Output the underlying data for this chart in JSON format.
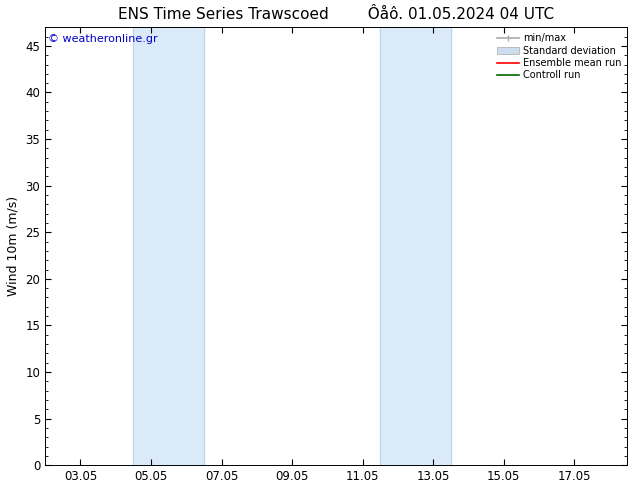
{
  "title_left": "ENS Time Series Trawscoed",
  "title_right": "Ôåô. 01.05.2024 04 UTC",
  "ylabel": "Wind 10m (m/s)",
  "watermark": "© weatheronline.gr",
  "watermark_color": "#0000cc",
  "ylim": [
    0,
    47
  ],
  "yticks": [
    0,
    5,
    10,
    15,
    20,
    25,
    30,
    35,
    40,
    45
  ],
  "xtick_labels": [
    "03.05",
    "05.05",
    "07.05",
    "09.05",
    "11.05",
    "13.05",
    "15.05",
    "17.05"
  ],
  "xtick_positions": [
    2,
    4,
    6,
    8,
    10,
    12,
    14,
    16
  ],
  "xmin": 1,
  "xmax": 17.5,
  "bg_color": "#ffffff",
  "plot_bg_color": "#ffffff",
  "shaded_bands": [
    {
      "xmin": 3.5,
      "xmax": 5.5,
      "color": "#daeaf8"
    },
    {
      "xmin": 10.5,
      "xmax": 12.5,
      "color": "#daeaf8"
    }
  ],
  "legend_items": [
    {
      "label": "min/max",
      "color": "#aaaaaa",
      "lw": 1.2,
      "style": "line_with_caps"
    },
    {
      "label": "Standard deviation",
      "color": "#ccdded",
      "lw": 8,
      "style": "band"
    },
    {
      "label": "Ensemble mean run",
      "color": "#ff0000",
      "lw": 1.2,
      "style": "line"
    },
    {
      "label": "Controll run",
      "color": "#006600",
      "lw": 1.2,
      "style": "line"
    }
  ],
  "title_fontsize": 11,
  "axis_fontsize": 9,
  "tick_fontsize": 8.5
}
